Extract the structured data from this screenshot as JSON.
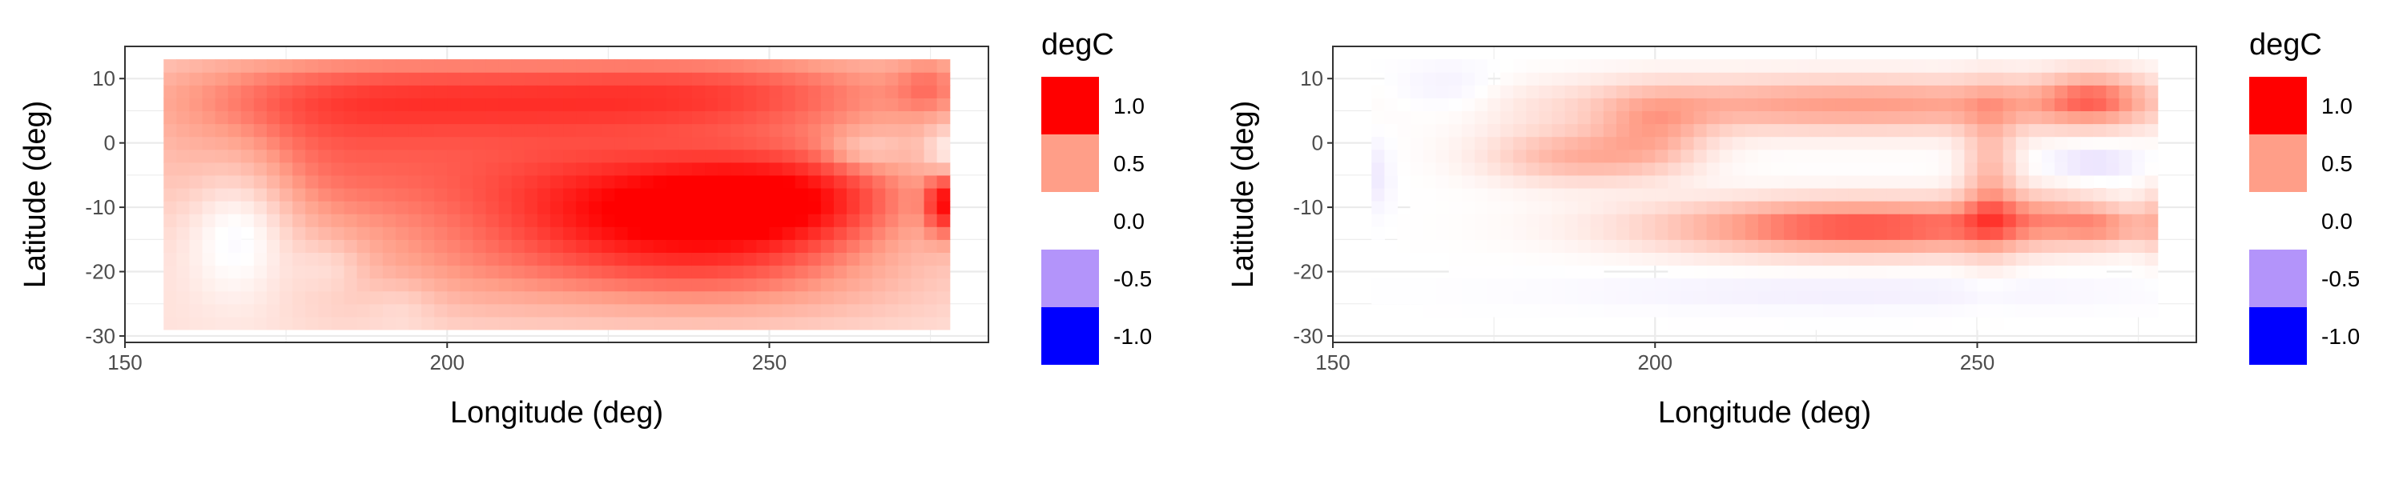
{
  "chart_data": [
    {
      "type": "heatmap",
      "xlabel": "Longitude (deg)",
      "ylabel": "Latitude (deg)",
      "xlim": [
        150,
        284
      ],
      "ylim": [
        -31,
        15
      ],
      "x_ticks": [
        "150",
        "200",
        "250"
      ],
      "y_ticks": [
        "10",
        "0",
        "-10",
        "-20",
        "-30"
      ],
      "x_tick_values": [
        150,
        200,
        250
      ],
      "y_tick_values": [
        10,
        0,
        -10,
        -20,
        -30
      ],
      "grid": true,
      "data_extent": {
        "lon": [
          156,
          278
        ],
        "lat": [
          -29,
          13
        ]
      },
      "legend": {
        "title": "degC",
        "position": "right",
        "entries": [
          {
            "label": "1.0",
            "value": 1.0,
            "color": "#FF0000"
          },
          {
            "label": "0.5",
            "value": 0.5,
            "color": "#FF9E88"
          },
          {
            "label": "0.0",
            "value": 0.0,
            "color": "#FFFFFF"
          },
          {
            "label": "-0.5",
            "value": -0.5,
            "color": "#B394FA"
          },
          {
            "label": "-1.0",
            "value": -1.0,
            "color": "#0000FF"
          }
        ]
      },
      "features": [
        {
          "lon": 190,
          "lat": 8,
          "sx": 28,
          "sy": 5,
          "value": 0.45
        },
        {
          "lon": 245,
          "lat": 8,
          "sx": 25,
          "sy": 5,
          "value": 0.5
        },
        {
          "lon": 275,
          "lat": 9,
          "sx": 4,
          "sy": 4,
          "value": 0.25
        },
        {
          "lon": 175,
          "lat": -3,
          "sx": 16,
          "sy": 8,
          "value": 0.3
        },
        {
          "lon": 210,
          "lat": -4,
          "sx": 25,
          "sy": 8,
          "value": 0.4
        },
        {
          "lon": 235,
          "lat": -12,
          "sx": 20,
          "sy": 7,
          "value": 0.6
        },
        {
          "lon": 255,
          "lat": -8,
          "sx": 15,
          "sy": 6,
          "value": 0.5
        },
        {
          "lon": 277,
          "lat": -9,
          "sx": 2,
          "sy": 4,
          "value": 0.6
        },
        {
          "lon": 200,
          "lat": -20,
          "sx": 18,
          "sy": 6,
          "value": 0.2
        },
        {
          "lon": 245,
          "lat": -22,
          "sx": 22,
          "sy": 5,
          "value": 0.25
        },
        {
          "lon": 168,
          "lat": -12,
          "sx": 6,
          "sy": 8,
          "value": -0.35
        },
        {
          "lon": 182,
          "lat": -19,
          "sx": 4,
          "sy": 3,
          "value": -0.15
        },
        {
          "lon": 193,
          "lat": -25,
          "sx": 4,
          "sy": 3,
          "value": -0.1
        },
        {
          "lon": 265,
          "lat": -1,
          "sx": 4,
          "sy": 2,
          "value": -0.2
        },
        {
          "lon": 277,
          "lat": -2,
          "sx": 2,
          "sy": 3,
          "value": -0.3
        }
      ],
      "base_value": 0.15
    },
    {
      "type": "heatmap",
      "xlabel": "Longitude (deg)",
      "ylabel": "Latitude (deg)",
      "xlim": [
        150,
        284
      ],
      "ylim": [
        -31,
        15
      ],
      "x_ticks": [
        "150",
        "200",
        "250"
      ],
      "y_ticks": [
        "10",
        "0",
        "-10",
        "-20",
        "-30"
      ],
      "x_tick_values": [
        150,
        200,
        250
      ],
      "y_tick_values": [
        10,
        0,
        -10,
        -20,
        -30
      ],
      "grid": true,
      "data_extent": {
        "lon": [
          156,
          278
        ],
        "lat": [
          -29,
          13
        ]
      },
      "legend": {
        "title": "degC",
        "position": "right",
        "entries": [
          {
            "label": "1.0",
            "value": 1.0,
            "color": "#FF0000"
          },
          {
            "label": "0.5",
            "value": 0.5,
            "color": "#FF9E88"
          },
          {
            "label": "0.0",
            "value": 0.0,
            "color": "#FFFFFF"
          },
          {
            "label": "-0.5",
            "value": -0.5,
            "color": "#B394FA"
          },
          {
            "label": "-1.0",
            "value": -1.0,
            "color": "#0000FF"
          }
        ]
      },
      "features": [
        {
          "lon": 232,
          "lat": 6,
          "sx": 32,
          "sy": 3,
          "value": 0.5
        },
        {
          "lon": 268,
          "lat": 7,
          "sx": 6,
          "sy": 3,
          "value": 0.45
        },
        {
          "lon": 188,
          "lat": -2,
          "sx": 10,
          "sy": 3,
          "value": 0.4
        },
        {
          "lon": 200,
          "lat": 2,
          "sx": 6,
          "sy": 4,
          "value": 0.3
        },
        {
          "lon": 232,
          "lat": -13,
          "sx": 22,
          "sy": 3,
          "value": 0.75
        },
        {
          "lon": 252,
          "lat": -5,
          "sx": 3,
          "sy": 8,
          "value": 0.35
        },
        {
          "lon": 270,
          "lat": -13,
          "sx": 5,
          "sy": 2,
          "value": 0.3
        },
        {
          "lon": 260,
          "lat": -11,
          "sx": 8,
          "sy": 3,
          "value": 0.25
        },
        {
          "lon": 168,
          "lat": 8,
          "sx": 6,
          "sy": 3,
          "value": -0.1
        },
        {
          "lon": 230,
          "lat": -23,
          "sx": 30,
          "sy": 2,
          "value": -0.08
        },
        {
          "lon": 268,
          "lat": -3,
          "sx": 5,
          "sy": 2,
          "value": -0.15
        },
        {
          "lon": 157,
          "lat": -5,
          "sx": 1.5,
          "sy": 4,
          "value": -0.1
        },
        {
          "lon": 277,
          "lat": -12,
          "sx": 1.5,
          "sy": 4,
          "value": 0.2
        }
      ],
      "base_value": 0.0
    }
  ]
}
